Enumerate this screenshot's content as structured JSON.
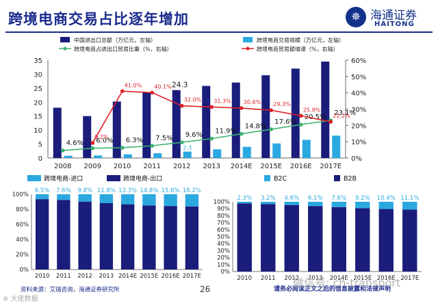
{
  "header": {
    "title": "跨境电商交易占比逐年增加",
    "logo_mark": "✵",
    "logo_cn": "海通证券",
    "logo_en": "HAITONG"
  },
  "footer": {
    "source": "资料来源：艾瑞咨询，海通证券研究所",
    "page_number": "26",
    "disclaimer": "请务必阅读正文之后的信息披露和法律声明",
    "watermark": "微信号: ch-transport",
    "corner_text": "※ 大佬数据"
  },
  "colors": {
    "dark_bar": "#1a1d7a",
    "light_bar": "#2ba8e0",
    "green_line": "#3cb371",
    "red_line": "#dd1f26"
  },
  "chart_data": [
    {
      "type": "bar",
      "categories": [
        "2008",
        "2009",
        "2010",
        "2011",
        "2012",
        "2013",
        "2014E",
        "2015E",
        "2016E",
        "2017E"
      ],
      "legend": [
        "中国进出口总额（万亿元，左轴）",
        "跨境电商交易规模（万亿元，左轴）",
        "跨境电商占进出口贸易比重（%，右轴）",
        "跨境电商贸易额增速（%，右轴）"
      ],
      "series": [
        {
          "name": "中国进出口总额（万亿元，左轴）",
          "axis": "left",
          "kind": "bar",
          "values": [
            18,
            15,
            20.2,
            23.6,
            24.3,
            25.8,
            27,
            29.6,
            32,
            34.5
          ]
        },
        {
          "name": "跨境电商交易规模（万亿元，左轴）",
          "axis": "left",
          "kind": "bar",
          "values": [
            0.8,
            0.9,
            1.3,
            1.7,
            2.3,
            3.1,
            4.0,
            5.2,
            6.5,
            8.0
          ]
        },
        {
          "name": "跨境电商占进出口贸易比重（%，右轴）",
          "axis": "right",
          "kind": "line",
          "values": [
            4.6,
            6.0,
            6.3,
            7.5,
            9.6,
            11.9,
            14.8,
            17.6,
            20.5,
            23.1
          ],
          "labels": [
            "4.6%",
            "6.0%",
            "6.3%",
            "7.5%",
            "9.6%",
            "11.9%",
            "14.8%",
            "17.6%",
            "20.5%",
            "23.1%"
          ]
        },
        {
          "name": "跨境电商贸易额增速（%，右轴）",
          "axis": "right",
          "kind": "line",
          "values": [
            null,
            9.2,
            41.0,
            40.1,
            32.0,
            31.3,
            30.6,
            29.3,
            25.9,
            22.2
          ],
          "labels": [
            "",
            "9.2%",
            "41.0%",
            "40.1%",
            "32.0%",
            "31.3%",
            "30.6%",
            "29.3%",
            "25.9%",
            "22.2%"
          ]
        }
      ],
      "extra_labels": [
        {
          "category": "2012",
          "text": "24.3"
        },
        {
          "category": "2012",
          "text": "2.3"
        }
      ],
      "ylim_left": [
        0,
        35
      ],
      "left_ticks": [
        "0",
        "5",
        "10",
        "15",
        "20",
        "25",
        "30",
        "35"
      ],
      "ylim_right": [
        0,
        60
      ],
      "right_ticks": [
        "0%",
        "10%",
        "20%",
        "30%",
        "40%",
        "50%",
        "60%"
      ]
    },
    {
      "type": "bar",
      "stacked": true,
      "categories": [
        "2010",
        "2011",
        "2012",
        "2013",
        "2014E",
        "2015E",
        "2016E",
        "2017E"
      ],
      "legend": [
        "跨境电商-进口",
        "跨境电商-出口"
      ],
      "series": [
        {
          "name": "跨境电商-进口",
          "values": [
            6.5,
            7.6,
            9.8,
            11.8,
            13.3,
            14.8,
            15.6,
            16.2
          ]
        },
        {
          "name": "跨境电商-出口",
          "values": [
            93.5,
            92.4,
            90.2,
            88.2,
            86.7,
            85.2,
            84.4,
            83.8
          ]
        }
      ],
      "labels": [
        "6.5%",
        "7.6%",
        "9.8%",
        "11.8%",
        "13.3%",
        "14.8%",
        "15.6%",
        "16.2%"
      ],
      "ylim": [
        0,
        100
      ],
      "ticks": [
        "0%",
        "20%",
        "40%",
        "60%",
        "80%",
        "100%"
      ]
    },
    {
      "type": "bar",
      "stacked": true,
      "categories": [
        "2010",
        "2011",
        "2012",
        "2013",
        "2014E",
        "2015E",
        "2016E",
        "2017E"
      ],
      "legend": [
        "B2C",
        "B2B"
      ],
      "series": [
        {
          "name": "B2C",
          "values": [
            2.3,
            3.2,
            4.6,
            6.1,
            7.6,
            9.2,
            10.4,
            11.1
          ]
        },
        {
          "name": "B2B",
          "values": [
            97.7,
            96.8,
            95.4,
            93.9,
            92.4,
            90.8,
            89.6,
            88.9
          ]
        }
      ],
      "labels": [
        "2.3%",
        "3.2%",
        "4.6%",
        "6.1%",
        "7.6%",
        "9.2%",
        "10.4%",
        "11.1%"
      ],
      "ylim": [
        0,
        100
      ],
      "ticks": [
        "0%",
        "10%",
        "20%",
        "30%",
        "40%",
        "50%",
        "60%",
        "70%",
        "80%",
        "90%",
        "100%"
      ]
    }
  ]
}
